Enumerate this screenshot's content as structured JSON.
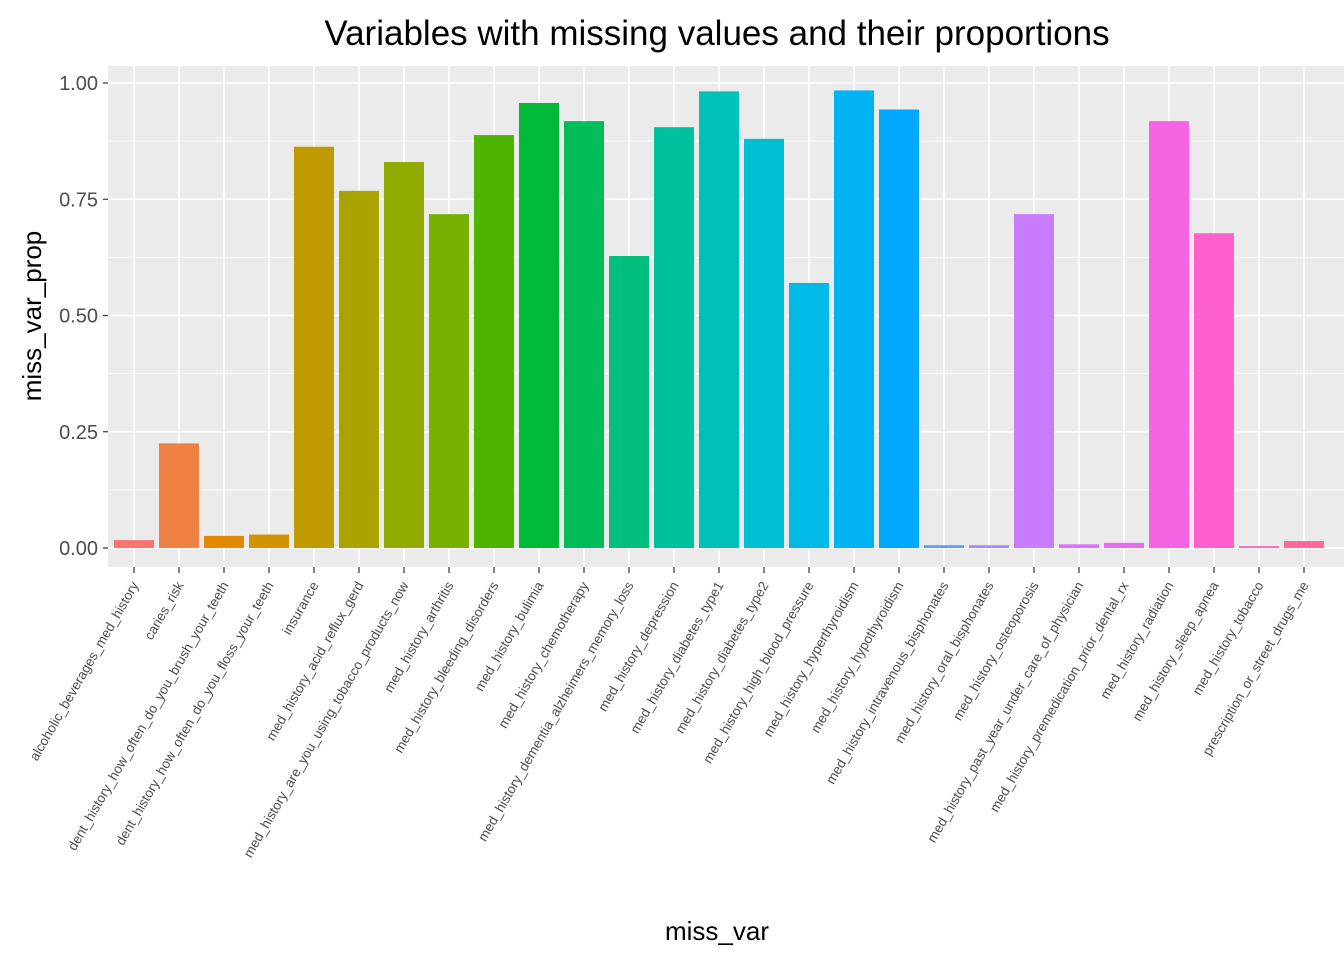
{
  "chart_data": {
    "type": "bar",
    "title": "Variables with missing values and their proportions",
    "xlabel": "miss_var",
    "ylabel": "miss_var_prop",
    "ylim": [
      -0.05,
      1.04
    ],
    "yticks": [
      0.0,
      0.25,
      0.5,
      0.75,
      1.0
    ],
    "ytick_labels": [
      "0.00",
      "0.25",
      "0.50",
      "0.75",
      "1.00"
    ],
    "grid": true,
    "legend": "none",
    "categories": [
      "alcoholic_beverages_med_history",
      "caries_risk",
      "dent_history_how_often_do_you_brush_your_teeth",
      "dent_history_how_often_do_you_floss_your_teeth",
      "insurance",
      "med_history_acid_reflux_gerd",
      "med_history_are_you_using_tobacco_products_now",
      "med_history_arthritis",
      "med_history_bleeding_disorders",
      "med_history_bulimia",
      "med_history_chemotherapy",
      "med_history_dementia_alzheimers_memory_loss",
      "med_history_depression",
      "med_history_diabetes_type1",
      "med_history_diabetes_type2",
      "med_history_high_blood_pressure",
      "med_history_hyperthyroidism",
      "med_history_hypothyroidism",
      "med_history_intravenous_bisphonates",
      "med_history_oral_bisphonates",
      "med_history_osteoporosis",
      "med_history_past_year_under_care_of_physician",
      "med_history_premedication_prior_dental_rx",
      "med_history_radiation",
      "med_history_sleep_apnea",
      "med_history_tobacco",
      "prescription_or_street_drugs_me"
    ],
    "values": [
      0.017,
      0.225,
      0.026,
      0.029,
      0.863,
      0.768,
      0.83,
      0.718,
      0.888,
      0.957,
      0.918,
      0.628,
      0.905,
      0.982,
      0.88,
      0.57,
      0.984,
      0.943,
      0.006,
      0.006,
      0.718,
      0.008,
      0.011,
      0.918,
      0.677,
      0.004,
      0.015
    ],
    "colors": [
      "#F8766D",
      "#EE8043",
      "#E38900",
      "#D39200",
      "#C09B00",
      "#AAA300",
      "#93AA00",
      "#76B000",
      "#4FB400",
      "#00B936",
      "#00BC59",
      "#00BF7D",
      "#00C19D",
      "#00C1BA",
      "#00BFD2",
      "#00BAE5",
      "#00B4F3",
      "#00A7FF",
      "#619CFF",
      "#A58AFF",
      "#C77CFF",
      "#DD71FA",
      "#EB6AEE",
      "#F564E3",
      "#FF61CC",
      "#FF63B6",
      "#FF689F"
    ]
  }
}
